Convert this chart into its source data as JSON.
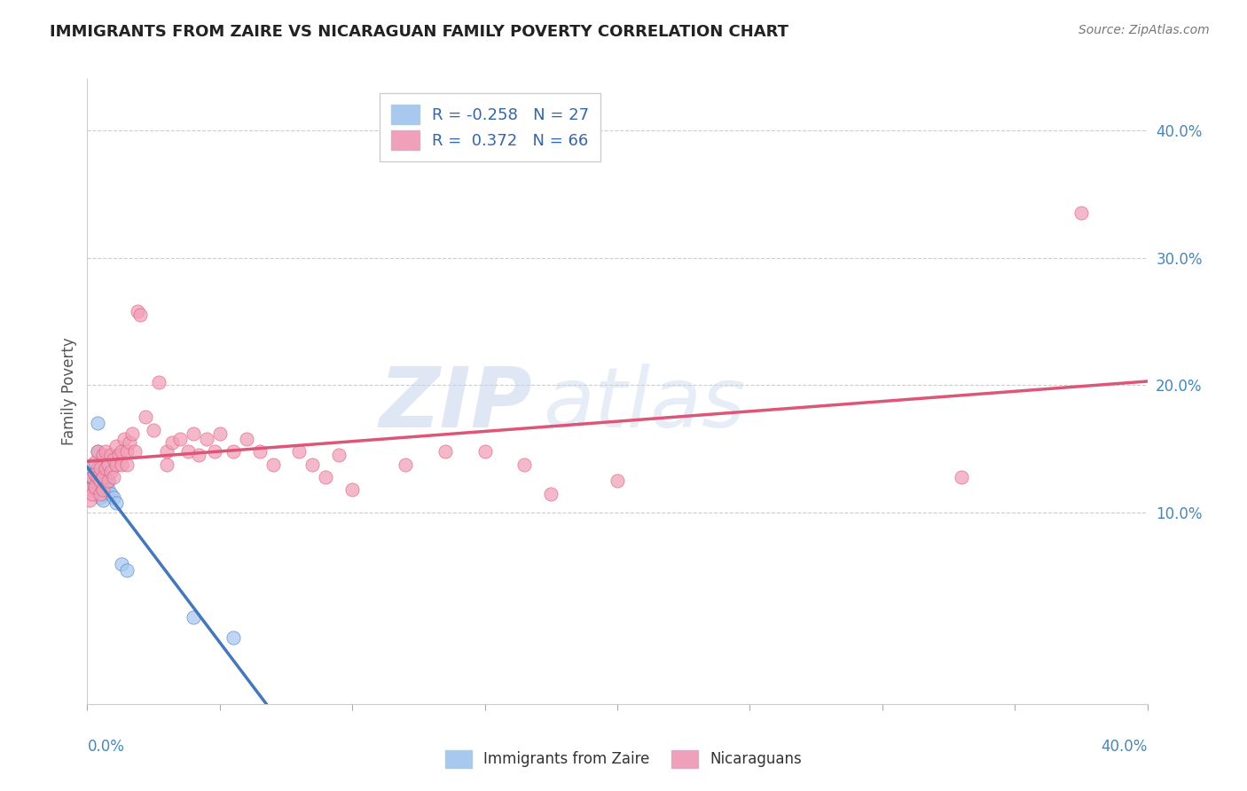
{
  "title": "IMMIGRANTS FROM ZAIRE VS NICARAGUAN FAMILY POVERTY CORRELATION CHART",
  "source": "Source: ZipAtlas.com",
  "ylabel": "Family Poverty",
  "legend_label1": "Immigrants from Zaire",
  "legend_label2": "Nicaraguans",
  "blue_color": "#A8C8F0",
  "pink_color": "#F0A0B8",
  "blue_line_color": "#4477BB",
  "pink_line_color": "#DD5577",
  "background_color": "#FFFFFF",
  "watermark_color": "#C8D8EC",
  "R1": -0.258,
  "N1": 27,
  "R2": 0.372,
  "N2": 66,
  "xmin": 0.0,
  "xmax": 0.4,
  "ymin": -0.05,
  "ymax": 0.44,
  "blue_scatter_x": [
    0.001,
    0.001,
    0.002,
    0.002,
    0.002,
    0.003,
    0.003,
    0.003,
    0.004,
    0.004,
    0.004,
    0.005,
    0.005,
    0.005,
    0.006,
    0.006,
    0.007,
    0.007,
    0.008,
    0.008,
    0.009,
    0.01,
    0.011,
    0.013,
    0.015,
    0.04,
    0.055
  ],
  "blue_scatter_y": [
    0.13,
    0.125,
    0.138,
    0.12,
    0.128,
    0.132,
    0.122,
    0.118,
    0.17,
    0.148,
    0.135,
    0.125,
    0.118,
    0.112,
    0.115,
    0.11,
    0.128,
    0.12,
    0.125,
    0.118,
    0.115,
    0.112,
    0.108,
    0.06,
    0.055,
    0.018,
    0.002
  ],
  "pink_scatter_x": [
    0.001,
    0.001,
    0.002,
    0.002,
    0.003,
    0.003,
    0.003,
    0.004,
    0.004,
    0.005,
    0.005,
    0.005,
    0.006,
    0.006,
    0.006,
    0.007,
    0.007,
    0.008,
    0.008,
    0.009,
    0.009,
    0.01,
    0.01,
    0.011,
    0.011,
    0.012,
    0.013,
    0.013,
    0.014,
    0.015,
    0.015,
    0.016,
    0.017,
    0.018,
    0.019,
    0.02,
    0.022,
    0.025,
    0.027,
    0.03,
    0.03,
    0.032,
    0.035,
    0.038,
    0.04,
    0.042,
    0.045,
    0.048,
    0.05,
    0.055,
    0.06,
    0.065,
    0.07,
    0.08,
    0.085,
    0.09,
    0.095,
    0.1,
    0.12,
    0.135,
    0.15,
    0.165,
    0.175,
    0.2,
    0.33,
    0.375
  ],
  "pink_scatter_y": [
    0.118,
    0.11,
    0.128,
    0.115,
    0.14,
    0.13,
    0.12,
    0.148,
    0.128,
    0.135,
    0.125,
    0.115,
    0.145,
    0.128,
    0.118,
    0.148,
    0.135,
    0.138,
    0.125,
    0.145,
    0.132,
    0.142,
    0.128,
    0.152,
    0.138,
    0.145,
    0.148,
    0.138,
    0.158,
    0.148,
    0.138,
    0.155,
    0.162,
    0.148,
    0.258,
    0.255,
    0.175,
    0.165,
    0.202,
    0.148,
    0.138,
    0.155,
    0.158,
    0.148,
    0.162,
    0.145,
    0.158,
    0.148,
    0.162,
    0.148,
    0.158,
    0.148,
    0.138,
    0.148,
    0.138,
    0.128,
    0.145,
    0.118,
    0.138,
    0.148,
    0.148,
    0.138,
    0.115,
    0.125,
    0.128,
    0.335
  ]
}
